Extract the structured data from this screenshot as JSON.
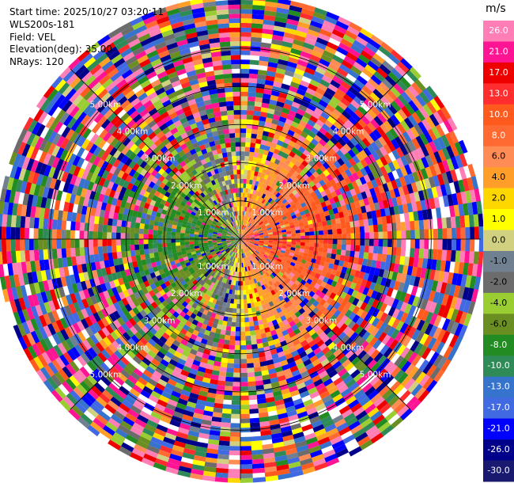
{
  "info": {
    "start_time": "Start time: 2025/10/27 03:20:11",
    "instrument": "WLS200s-181",
    "field": "Field: VEL",
    "elevation": "Elevation(deg): 35.00",
    "nrays": "NRays: 120"
  },
  "chart_data": {
    "type": "heatmap",
    "projection": "polar-ppi",
    "field": "VEL",
    "units": "m/s",
    "n_rays": 120,
    "elevation_deg": 35.0,
    "grid": true,
    "range_ring_labels": [
      "1.00km",
      "1.00km",
      "1.00km",
      "1.00km",
      "2.00km",
      "2.00km",
      "2.00km",
      "2.00km",
      "3.00km",
      "3.00km",
      "3.00km",
      "3.00km",
      "4.00km",
      "4.00km",
      "4.00km",
      "4.00km",
      "5.00km",
      "5.00km",
      "5.00km",
      "5.00km"
    ],
    "range_rings_km": [
      1,
      2,
      3,
      4,
      5
    ],
    "max_range_km": 6.3,
    "colorbar": {
      "unit_label": "m/s",
      "ticks": [
        "26.0",
        "21.0",
        "17.0",
        "13.0",
        "10.0",
        "8.0",
        "6.0",
        "4.0",
        "2.0",
        "1.0",
        "0.0",
        "-1.0",
        "-2.0",
        "-4.0",
        "-6.0",
        "-8.0",
        "-10.0",
        "-13.0",
        "-17.0",
        "-21.0",
        "-26.0",
        "-30.0"
      ],
      "band_colors": [
        "#ff7eb6",
        "#ff1493",
        "#ee0000",
        "#ff2d2d",
        "#ff5a1e",
        "#ff6a33",
        "#ff8c55",
        "#ff9f2a",
        "#ffd700",
        "#ffff00",
        "#d0d080",
        "#708090",
        "#6c6c6c",
        "#9acd32",
        "#6b8e23",
        "#228b22",
        "#2e8b57",
        "#3573cc",
        "#4169e1",
        "#0000ff",
        "#00008b",
        "#191970"
      ]
    }
  }
}
